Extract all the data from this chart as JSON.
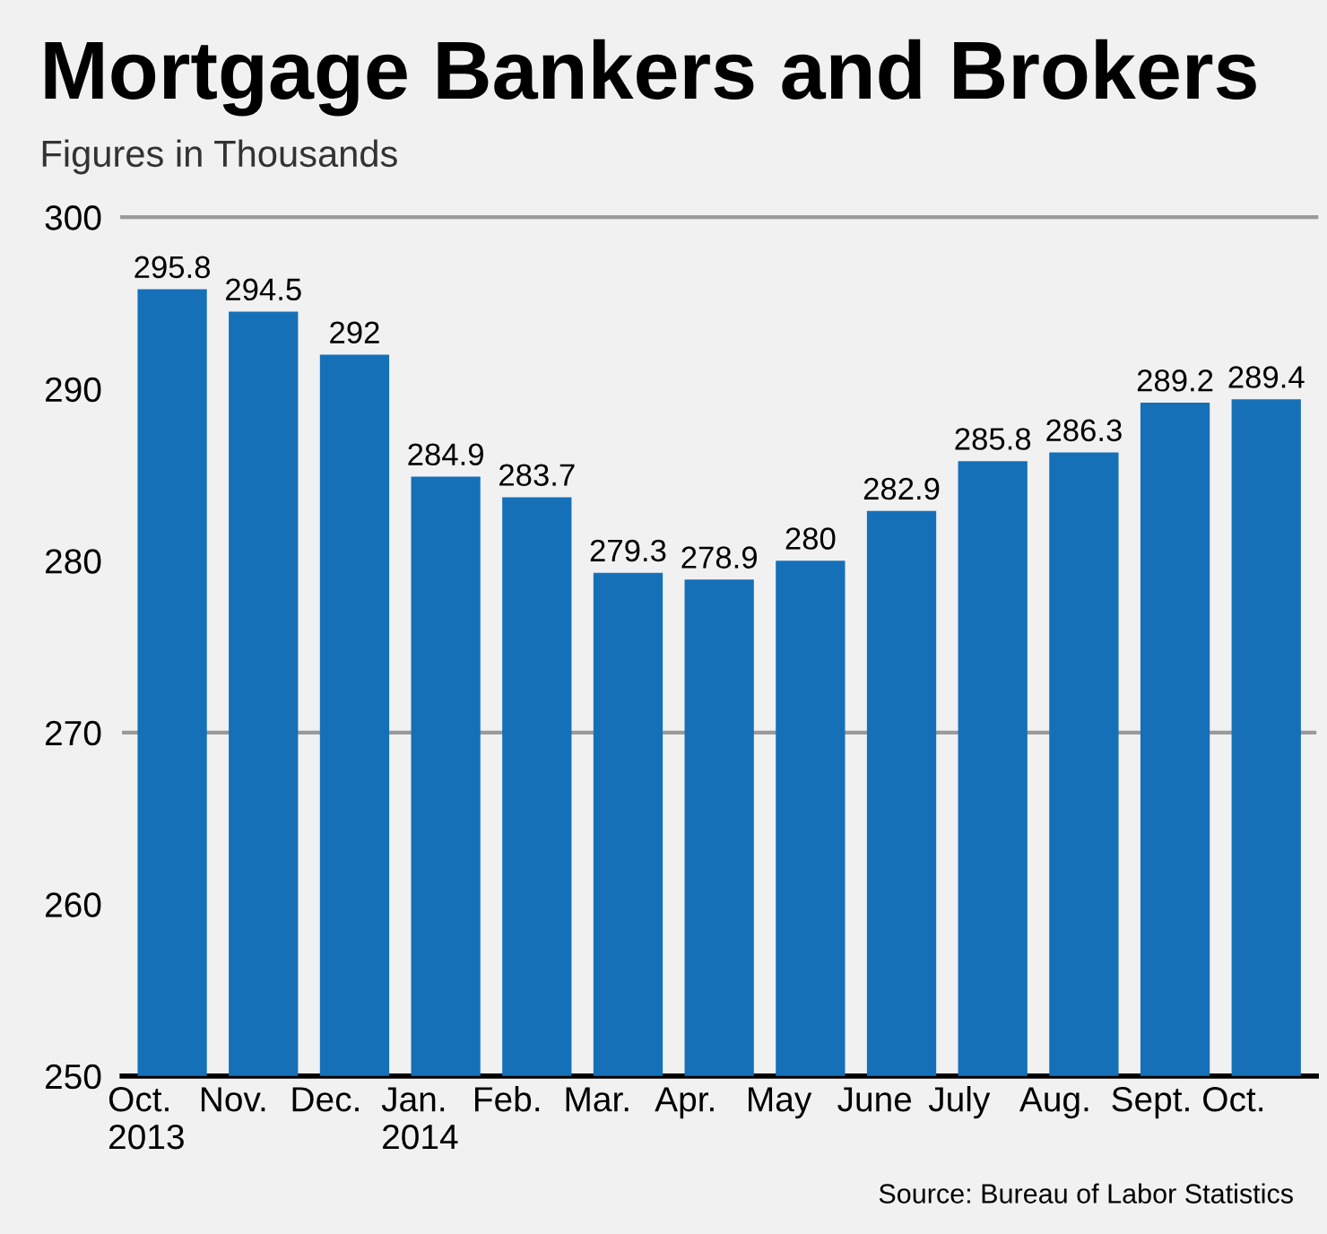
{
  "chart_data": {
    "type": "bar",
    "title": "Mortgage Bankers and Brokers",
    "subtitle": "Figures in Thousands",
    "categories": [
      "Oct.\n2013",
      "Nov.",
      "Dec.",
      "Jan.\n2014",
      "Feb.",
      "Mar.",
      "Apr.",
      "May",
      "June",
      "July",
      "Aug.",
      "Sept.",
      "Oct."
    ],
    "values": [
      295.8,
      294.5,
      292,
      284.9,
      283.7,
      279.3,
      278.9,
      280,
      282.9,
      285.8,
      286.3,
      289.2,
      289.4
    ],
    "color": "#1570b8",
    "ylim": [
      250,
      300
    ],
    "yticks": [
      250,
      260,
      270,
      280,
      290,
      300
    ],
    "data_labels": true,
    "ref_lines": [
      {
        "axis": "y",
        "value": 270,
        "color": "#9a9a9a"
      }
    ],
    "annotations": [
      "Source: Bureau of Labor Statistics"
    ]
  }
}
